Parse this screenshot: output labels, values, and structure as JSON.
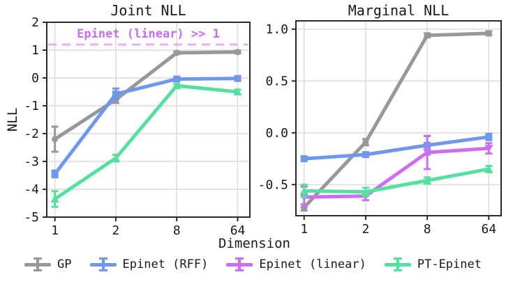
{
  "figure": {
    "xlabel": "Dimension",
    "background": "#ffffff",
    "axis_color": "#2a2a2a",
    "grid_color": "#dcdcdc",
    "text_color": "#1a1a1a"
  },
  "legend": {
    "items": [
      {
        "label": "GP",
        "color": "#989898",
        "marker": "circle"
      },
      {
        "label": "Epinet (RFF)",
        "color": "#6f97ee",
        "marker": "square"
      },
      {
        "label": "Epinet (linear)",
        "color": "#cc6ef5",
        "marker": "triangle-down"
      },
      {
        "label": "PT-Epinet",
        "color": "#55e0a0",
        "marker": "triangle-up"
      }
    ]
  },
  "chart_data": [
    {
      "type": "line",
      "title": "Joint NLL",
      "ylabel": "NLL",
      "categories": [
        "1",
        "2",
        "8",
        "64"
      ],
      "ylim": [
        -5,
        2
      ],
      "ytick_values": [
        2,
        1,
        0,
        -1,
        -2,
        -3,
        -4,
        -5
      ],
      "ytick_labels": [
        "2",
        "1",
        "0",
        "-1",
        "-2",
        "-3",
        "-4",
        "-5"
      ],
      "grid": true,
      "legend_position": "below-figure",
      "annotation": {
        "text": "Epinet (linear) >> 1",
        "text_color": "#c76ef0",
        "line_y": 1.2,
        "line_color": "#e9aff5",
        "line_style": "dashed"
      },
      "series": [
        {
          "name": "GP",
          "color": "#989898",
          "marker": "circle",
          "values": [
            -2.2,
            -0.78,
            0.9,
            0.93
          ],
          "errors": [
            0.45,
            0.12,
            0.05,
            0.05
          ]
        },
        {
          "name": "Epinet (RFF)",
          "color": "#6f97ee",
          "marker": "square",
          "values": [
            -3.45,
            -0.58,
            -0.04,
            -0.02
          ],
          "errors": [
            0.12,
            0.2,
            0.05,
            0.05
          ]
        },
        {
          "name": "PT-Epinet",
          "color": "#55e0a0",
          "marker": "triangle-up",
          "values": [
            -4.35,
            -2.88,
            -0.28,
            -0.5
          ],
          "errors": [
            0.28,
            0.12,
            0.06,
            0.08
          ]
        }
      ]
    },
    {
      "type": "line",
      "title": "Marginal NLL",
      "categories": [
        "1",
        "2",
        "8",
        "64"
      ],
      "ylim": [
        -0.8,
        1.08
      ],
      "ytick_values": [
        1.0,
        0.5,
        0.0,
        -0.5
      ],
      "ytick_labels": [
        "1.0",
        "0.5",
        "0.0",
        "-0.5"
      ],
      "grid": true,
      "series": [
        {
          "name": "GP",
          "color": "#989898",
          "marker": "circle",
          "values": [
            -0.72,
            -0.09,
            0.94,
            0.96
          ],
          "errors": [
            0.03,
            0.03,
            0.02,
            0.02
          ]
        },
        {
          "name": "Epinet (RFF)",
          "color": "#6f97ee",
          "marker": "square",
          "values": [
            -0.25,
            -0.21,
            -0.12,
            -0.04
          ],
          "errors": [
            0.02,
            0.02,
            0.09,
            0.03
          ]
        },
        {
          "name": "Epinet (linear)",
          "color": "#cc6ef5",
          "marker": "triangle-down",
          "values": [
            -0.62,
            -0.61,
            -0.19,
            -0.15
          ],
          "errors": [
            0.1,
            0.04,
            0.16,
            0.05
          ]
        },
        {
          "name": "PT-Epinet",
          "color": "#55e0a0",
          "marker": "triangle-up",
          "values": [
            -0.56,
            -0.57,
            -0.46,
            -0.35
          ],
          "errors": [
            0.06,
            0.04,
            0.03,
            0.03
          ]
        }
      ]
    }
  ]
}
